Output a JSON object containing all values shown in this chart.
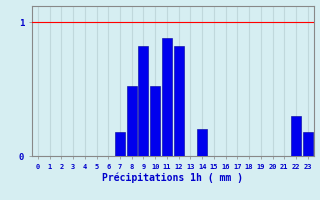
{
  "hours": [
    0,
    1,
    2,
    3,
    4,
    5,
    6,
    7,
    8,
    9,
    10,
    11,
    12,
    13,
    14,
    15,
    16,
    17,
    18,
    19,
    20,
    21,
    22,
    23
  ],
  "values": [
    0,
    0,
    0,
    0,
    0,
    0,
    0,
    0.18,
    0.52,
    0.82,
    0.52,
    0.88,
    0.82,
    0,
    0.2,
    0,
    0,
    0,
    0,
    0,
    0,
    0,
    0.3,
    0.18
  ],
  "bar_color": "#0000EE",
  "bar_edge_color": "#000099",
  "background_color": "#D6EEF2",
  "grid_color": "#C0D8DC",
  "axis_label_color": "#0000CC",
  "tick_color": "#0000CC",
  "xlabel": "Précipitations 1h ( mm )",
  "ylim": [
    0,
    1.12
  ],
  "xlim": [
    -0.5,
    23.5
  ],
  "yticks": [
    0,
    1
  ],
  "red_line_y": 1.0,
  "font_family": "monospace"
}
